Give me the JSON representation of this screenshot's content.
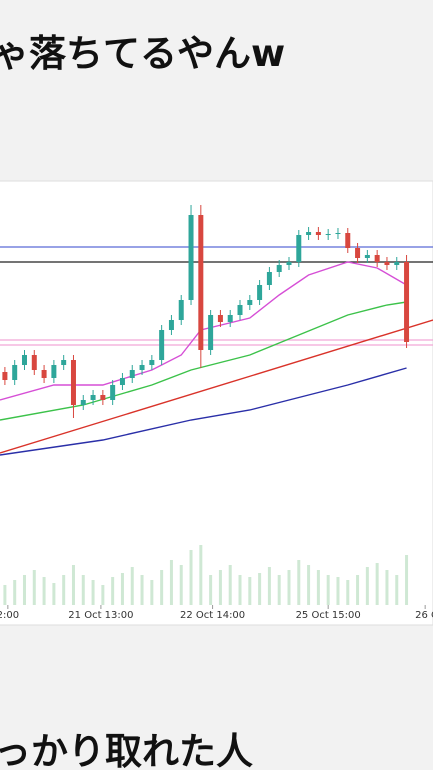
{
  "header": {
    "title": "ゃ落ちてるやんw"
  },
  "footer": {
    "text": "っかり取れた人"
  },
  "chart_data": {
    "type": "candlestick",
    "xlim": [
      -0.5,
      43.7
    ],
    "ylim": [
      0,
      280
    ],
    "volume_ylim": [
      0,
      100
    ],
    "up_color": "#2ea69a",
    "down_color": "#d8473f",
    "open": [
      98,
      90,
      105,
      115,
      100,
      92,
      105,
      110,
      65,
      70,
      75,
      70,
      85,
      92,
      100,
      105,
      110,
      140,
      150,
      170,
      255,
      120,
      155,
      148,
      155,
      165,
      170,
      185,
      198,
      205,
      208,
      235,
      238,
      235,
      236,
      237,
      222,
      212,
      215,
      208,
      205,
      208
    ],
    "high": [
      103,
      110,
      120,
      120,
      105,
      110,
      115,
      115,
      75,
      80,
      80,
      90,
      97,
      105,
      110,
      115,
      145,
      155,
      175,
      265,
      265,
      160,
      160,
      160,
      170,
      175,
      190,
      203,
      210,
      213,
      240,
      243,
      243,
      241,
      242,
      242,
      227,
      220,
      220,
      213,
      213,
      215
    ],
    "low": [
      85,
      85,
      100,
      95,
      87,
      87,
      100,
      52,
      60,
      65,
      65,
      65,
      80,
      87,
      95,
      100,
      105,
      135,
      145,
      165,
      102,
      115,
      143,
      143,
      150,
      160,
      165,
      180,
      193,
      200,
      203,
      230,
      230,
      230,
      231,
      217,
      207,
      207,
      203,
      200,
      200,
      122
    ],
    "close": [
      90,
      105,
      115,
      100,
      92,
      105,
      110,
      65,
      70,
      75,
      70,
      85,
      92,
      100,
      105,
      110,
      140,
      150,
      170,
      255,
      120,
      155,
      148,
      155,
      165,
      170,
      185,
      198,
      205,
      208,
      235,
      238,
      235,
      236,
      237,
      222,
      212,
      215,
      208,
      205,
      208,
      128
    ],
    "volume": [
      20,
      25,
      30,
      35,
      28,
      22,
      30,
      40,
      30,
      25,
      20,
      28,
      32,
      38,
      30,
      25,
      35,
      45,
      40,
      55,
      60,
      30,
      35,
      40,
      30,
      28,
      32,
      38,
      30,
      35,
      45,
      40,
      35,
      30,
      28,
      25,
      30,
      38,
      42,
      35,
      30,
      50
    ],
    "hlines": [
      {
        "value": 223,
        "color": "#5b6bd6"
      },
      {
        "value": 208,
        "color": "#222222"
      },
      {
        "value": 130,
        "color": "#f2a6d6"
      },
      {
        "value": 125,
        "color": "#f2a6d6"
      }
    ],
    "lines": [
      {
        "color": "#d9332a",
        "x": [
          -0.5,
          43.7
        ],
        "values": [
          17,
          150
        ]
      },
      {
        "color": "#2a2fa8",
        "x": [
          -0.5,
          10,
          19,
          25,
          31,
          35,
          41
        ],
        "values": [
          15,
          30,
          50,
          60,
          75,
          85,
          102
        ]
      },
      {
        "color": "#3cc24a",
        "x": [
          -0.5,
          8,
          15,
          19,
          25,
          30,
          35,
          39,
          41
        ],
        "values": [
          50,
          65,
          85,
          100,
          115,
          135,
          155,
          165,
          168
        ]
      },
      {
        "color": "#d64fd6",
        "x": [
          -0.5,
          5,
          10,
          15,
          18,
          20,
          25,
          28,
          31,
          35,
          38,
          41
        ],
        "values": [
          70,
          85,
          85,
          100,
          115,
          140,
          152,
          175,
          195,
          208,
          202,
          185
        ]
      }
    ],
    "xticks": [
      {
        "value": 0.3,
        "label": "2:00"
      },
      {
        "value": 9.8,
        "label": "21 Oct 13:00"
      },
      {
        "value": 21.2,
        "label": "22 Oct 14:00"
      },
      {
        "value": 33.0,
        "label": "25 Oct 15:00"
      },
      {
        "value": 42.9,
        "label": "26 O"
      }
    ]
  }
}
